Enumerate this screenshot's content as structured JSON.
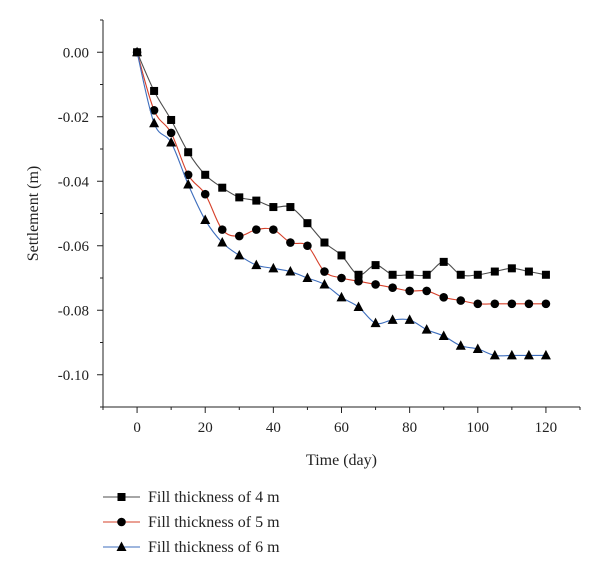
{
  "chart_data": {
    "type": "line",
    "title": "",
    "xlabel": "Time (day)",
    "ylabel": "Settlement (m)",
    "xlim": [
      -10,
      130
    ],
    "ylim": [
      -0.11,
      0.01
    ],
    "x_ticks": [
      0,
      20,
      40,
      60,
      80,
      100,
      120
    ],
    "x_tick_labels": [
      "0",
      "20",
      "40",
      "60",
      "80",
      "100",
      "120"
    ],
    "y_ticks": [
      0.0,
      -0.02,
      -0.04,
      -0.06,
      -0.08,
      -0.1
    ],
    "y_tick_labels": [
      "0.00",
      "-0.02",
      "-0.04",
      "-0.06",
      "-0.08",
      "-0.10"
    ],
    "grid": false,
    "legend_position": "bottom",
    "x": [
      0,
      5,
      10,
      15,
      20,
      25,
      30,
      35,
      40,
      45,
      50,
      55,
      60,
      65,
      70,
      75,
      80,
      85,
      90,
      95,
      100,
      105,
      110,
      115,
      120
    ],
    "series": [
      {
        "name": "Fill thickness of 4 m",
        "marker": "square",
        "color": "#4d4d4d",
        "values": [
          0,
          -0.012,
          -0.021,
          -0.031,
          -0.038,
          -0.042,
          -0.045,
          -0.046,
          -0.048,
          -0.048,
          -0.053,
          -0.059,
          -0.063,
          -0.069,
          -0.066,
          -0.069,
          -0.069,
          -0.069,
          -0.065,
          -0.069,
          -0.069,
          -0.068,
          -0.067,
          -0.068,
          -0.069
        ]
      },
      {
        "name": "Fill thickness of 5 m",
        "marker": "circle",
        "color": "#d6402a",
        "values": [
          0,
          -0.018,
          -0.025,
          -0.038,
          -0.044,
          -0.055,
          -0.057,
          -0.055,
          -0.055,
          -0.059,
          -0.06,
          -0.068,
          -0.07,
          -0.071,
          -0.072,
          -0.073,
          -0.074,
          -0.074,
          -0.076,
          -0.077,
          -0.078,
          -0.078,
          -0.078,
          -0.078,
          -0.078
        ]
      },
      {
        "name": "Fill thickness of 6 m",
        "marker": "triangle",
        "color": "#3e6ebd",
        "values": [
          0,
          -0.022,
          -0.028,
          -0.041,
          -0.052,
          -0.059,
          -0.063,
          -0.066,
          -0.067,
          -0.068,
          -0.07,
          -0.072,
          -0.076,
          -0.079,
          -0.084,
          -0.083,
          -0.083,
          -0.086,
          -0.088,
          -0.091,
          -0.092,
          -0.094,
          -0.094,
          -0.094,
          -0.094
        ]
      }
    ]
  }
}
